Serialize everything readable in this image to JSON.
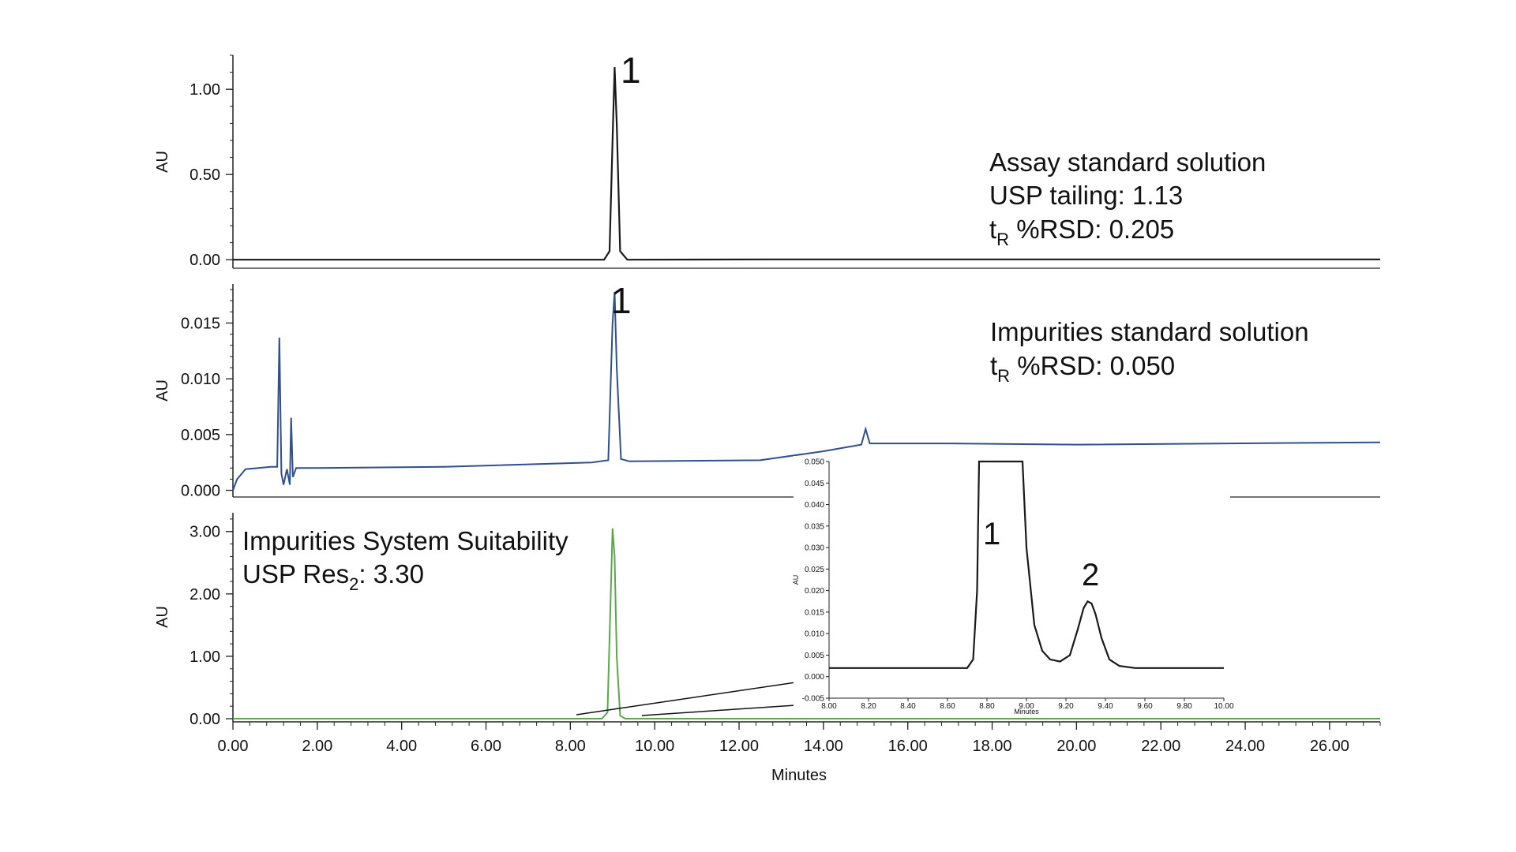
{
  "colors": {
    "panel1_trace": "#1a1a1a",
    "panel2_trace": "#2f4f8f",
    "panel3_trace": "#5aa84a",
    "axis": "#222222"
  },
  "panel1": {
    "annotation_line1": "Assay standard solution",
    "annotation_line2": "USP tailing: 1.13",
    "annotation_line3_main": "t",
    "annotation_line3_sub": "R",
    "annotation_line3_rest": " %RSD: 0.205",
    "peak_label": "1"
  },
  "panel2": {
    "annotation_line1": "Impurities standard solution",
    "annotation_line2_main": "t",
    "annotation_line2_sub": "R",
    "annotation_line2_rest": " %RSD: 0.050",
    "peak_label": "1"
  },
  "panel3": {
    "annotation_line1": "Impurities System Suitability",
    "annotation_line2_main": "USP Res",
    "annotation_line2_sub": "2",
    "annotation_line2_rest": ": 3.30"
  },
  "inset": {
    "peak1_label": "1",
    "peak2_label": "2"
  },
  "chart_data": [
    {
      "type": "line",
      "xlabel": "Minutes",
      "ylabel": "AU",
      "xlim": [
        0,
        27.2
      ],
      "ylim": [
        -0.05,
        1.2
      ],
      "x_ticks": [
        "0.00",
        "2.00",
        "4.00",
        "6.00",
        "8.00",
        "10.00",
        "12.00",
        "14.00",
        "16.00",
        "18.00",
        "20.00",
        "22.00",
        "24.00",
        "26.00"
      ],
      "y_ticks": [
        {
          "v": 0.0,
          "label": "0.00"
        },
        {
          "v": 0.5,
          "label": "0.50"
        },
        {
          "v": 1.0,
          "label": "1.00"
        }
      ],
      "series": [
        {
          "x": [
            0,
            8.8,
            8.93,
            9.0,
            9.05,
            9.1,
            9.18,
            9.35,
            12.7,
            27.2
          ],
          "y": [
            0.0,
            0.0,
            0.05,
            0.7,
            1.13,
            0.8,
            0.05,
            0.0,
            0.002,
            0.002
          ]
        }
      ]
    },
    {
      "type": "line",
      "xlabel": "Minutes",
      "ylabel": "AU",
      "xlim": [
        0,
        27.2
      ],
      "ylim": [
        -0.0006,
        0.0185
      ],
      "y_ticks": [
        {
          "v": 0.0,
          "label": "0.000"
        },
        {
          "v": 0.005,
          "label": "0.005"
        },
        {
          "v": 0.01,
          "label": "0.010"
        },
        {
          "v": 0.015,
          "label": "0.015"
        }
      ],
      "series": [
        {
          "x": [
            0,
            0.1,
            0.3,
            0.6,
            0.9,
            1.05,
            1.1,
            1.15,
            1.2,
            1.28,
            1.35,
            1.38,
            1.42,
            1.5,
            1.6,
            2.0,
            5.0,
            8.5,
            8.9,
            9.0,
            9.05,
            9.1,
            9.2,
            9.4,
            12.5,
            14.0,
            14.9,
            15.0,
            15.1,
            17.0,
            20.0,
            27.2
          ],
          "y": [
            0.0,
            0.001,
            0.0019,
            0.002,
            0.0021,
            0.0021,
            0.0137,
            0.0015,
            0.0005,
            0.0019,
            0.0005,
            0.0065,
            0.0012,
            0.002,
            0.002,
            0.002,
            0.0021,
            0.0025,
            0.0027,
            0.015,
            0.0178,
            0.011,
            0.0028,
            0.0026,
            0.0027,
            0.0035,
            0.0041,
            0.0055,
            0.0042,
            0.0042,
            0.0041,
            0.0043
          ]
        }
      ]
    },
    {
      "type": "line",
      "xlabel": "Minutes",
      "ylabel": "AU",
      "xlim": [
        0,
        27.2
      ],
      "ylim": [
        -0.05,
        3.3
      ],
      "x_ticks": [
        "0.00",
        "2.00",
        "4.00",
        "6.00",
        "8.00",
        "10.00",
        "12.00",
        "14.00",
        "16.00",
        "18.00",
        "20.00",
        "22.00",
        "24.00",
        "26.00"
      ],
      "y_ticks": [
        {
          "v": 0.0,
          "label": "0.00"
        },
        {
          "v": 1.0,
          "label": "1.00"
        },
        {
          "v": 2.0,
          "label": "2.00"
        },
        {
          "v": 3.0,
          "label": "3.00"
        }
      ],
      "series": [
        {
          "x": [
            0,
            8.75,
            8.88,
            8.95,
            9.0,
            9.05,
            9.1,
            9.18,
            9.3,
            27.2
          ],
          "y": [
            0.0,
            0.0,
            0.1,
            1.8,
            3.05,
            2.6,
            1.0,
            0.05,
            0.0,
            0.0
          ]
        }
      ]
    },
    {
      "type": "line",
      "xlabel": "Minutes",
      "ylabel": "AU",
      "xlim": [
        8.0,
        10.0
      ],
      "ylim": [
        -0.005,
        0.05
      ],
      "x_ticks": [
        "8.00",
        "8.20",
        "8.40",
        "8.60",
        "8.80",
        "9.00",
        "9.20",
        "9.40",
        "9.60",
        "9.80",
        "10.00"
      ],
      "y_ticks": [
        {
          "v": -0.005,
          "label": "-0.005"
        },
        {
          "v": 0.0,
          "label": "0.000"
        },
        {
          "v": 0.005,
          "label": "0.005"
        },
        {
          "v": 0.01,
          "label": "0.010"
        },
        {
          "v": 0.015,
          "label": "0.015"
        },
        {
          "v": 0.02,
          "label": "0.020"
        },
        {
          "v": 0.025,
          "label": "0.025"
        },
        {
          "v": 0.03,
          "label": "0.030"
        },
        {
          "v": 0.035,
          "label": "0.035"
        },
        {
          "v": 0.04,
          "label": "0.040"
        },
        {
          "v": 0.045,
          "label": "0.045"
        },
        {
          "v": 0.05,
          "label": "0.050"
        }
      ],
      "series": [
        {
          "x": [
            8.0,
            8.7,
            8.73,
            8.75,
            8.76,
            8.98,
            9.0,
            9.04,
            9.08,
            9.12,
            9.17,
            9.22,
            9.26,
            9.29,
            9.31,
            9.33,
            9.35,
            9.38,
            9.42,
            9.47,
            9.55,
            10.0
          ],
          "y": [
            0.002,
            0.002,
            0.004,
            0.02,
            0.05,
            0.05,
            0.03,
            0.012,
            0.006,
            0.004,
            0.0035,
            0.005,
            0.011,
            0.016,
            0.0175,
            0.017,
            0.0145,
            0.009,
            0.004,
            0.0025,
            0.002,
            0.002
          ]
        }
      ]
    }
  ]
}
